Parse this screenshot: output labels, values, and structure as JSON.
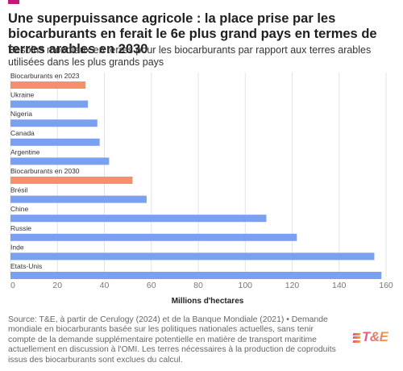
{
  "header": {
    "title": "Une superpuissance agricole : la place prise par les biocarburants en ferait le 6e plus grand pays en termes de terres arables en 2030",
    "subtitle": "Besoins mondiaux en terres pour les biocarburants par rapport aux terres arables utilisées dans les plus grands pays"
  },
  "footer": {
    "source": "Source: T&E, à partir de Cerulogy (2024) et de la Banque Mondiale (2021) • Demande mondiale en biocarburants basée sur les politiques nationales actuelles, sans tenir compte de la demande supplémentaire potentielle en matière de transport maritime actuellement en discussion à l'OMI. Les terres nécessaires à la production de coproduits issus des biocarburants sont exclues du calcul.",
    "logo_text": "T&E"
  },
  "colors": {
    "accent": "#c2187a",
    "bar_default": "#7aa0f0",
    "bar_highlight": "#f4906b",
    "grid": "#e3e3e3",
    "axis_text": "#777777"
  },
  "chart_data": {
    "type": "bar",
    "orientation": "horizontal",
    "categories": [
      "Biocarburants en 2023",
      "Ukraine",
      "Nigeria",
      "Canada",
      "Argentine",
      "Biocarburants en 2030",
      "Brésil",
      "Chine",
      "Russie",
      "Inde",
      "Etats-Unis"
    ],
    "values": [
      32,
      33,
      37,
      38,
      42,
      52,
      58,
      109,
      122,
      155,
      158
    ],
    "highlight": [
      true,
      false,
      false,
      false,
      false,
      true,
      false,
      false,
      false,
      false,
      false
    ],
    "xlabel": "Millions d'hectares",
    "ylabel": "",
    "xlim": [
      0,
      160
    ],
    "xticks": [
      0,
      20,
      40,
      60,
      80,
      100,
      120,
      140,
      160
    ],
    "grid": true,
    "legend": "none"
  }
}
